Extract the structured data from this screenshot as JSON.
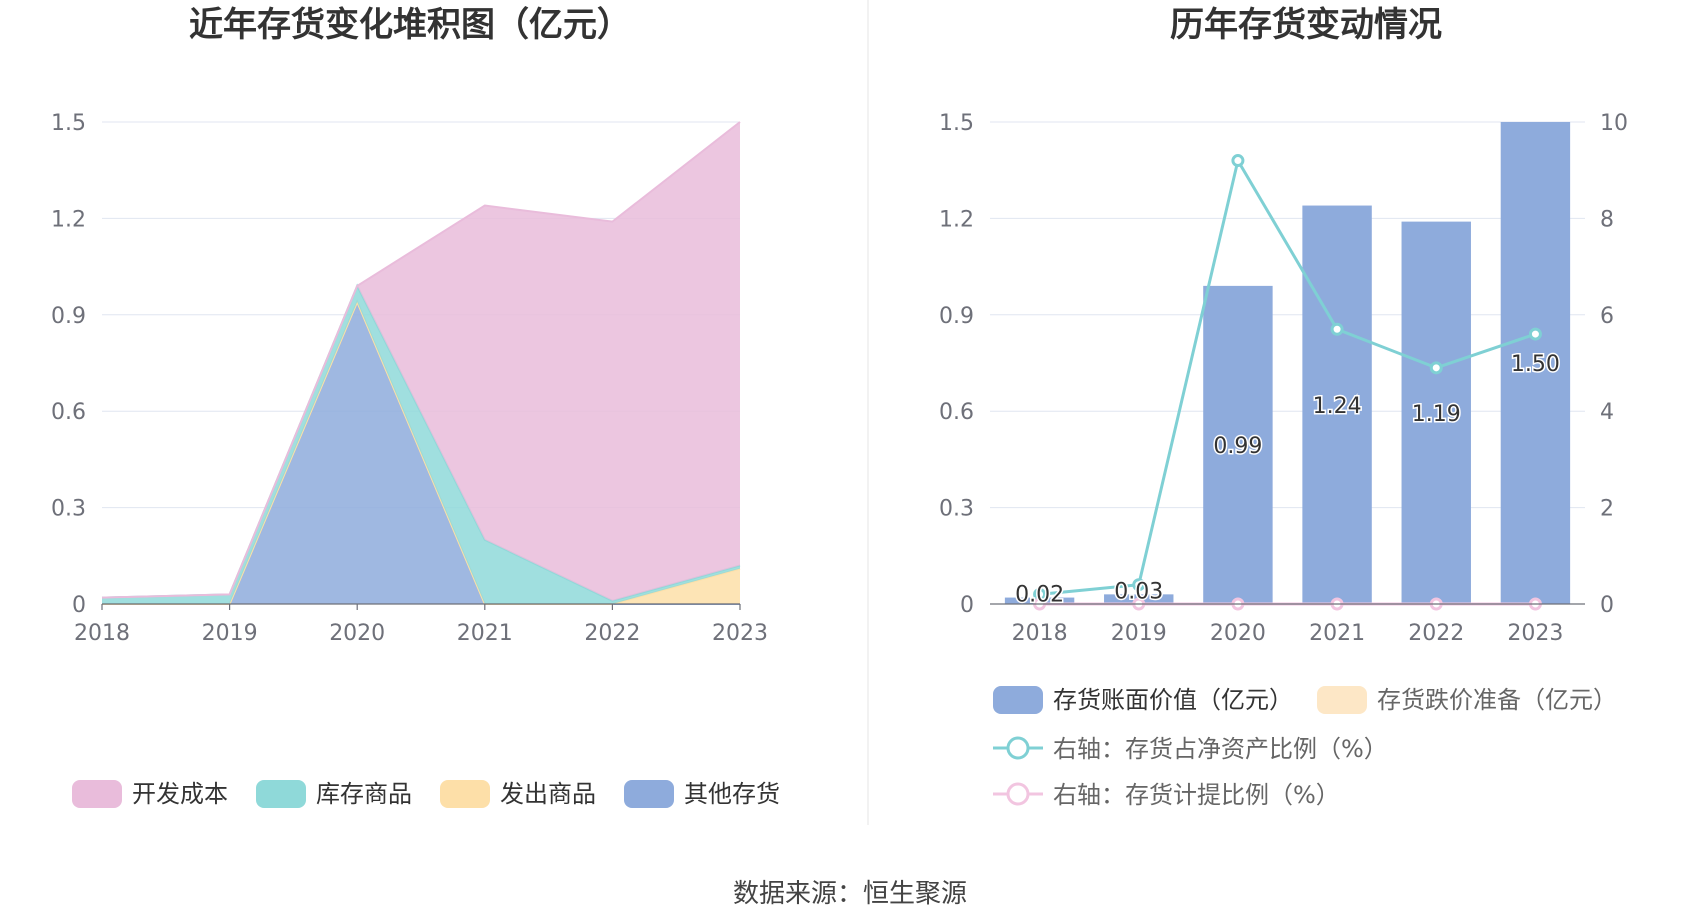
{
  "source_label": "数据来源：恒生聚源",
  "chart_data": [
    {
      "type": "area",
      "stacked": true,
      "title": "近年存货变化堆积图（亿元）",
      "categories": [
        "2018",
        "2019",
        "2020",
        "2021",
        "2022",
        "2023"
      ],
      "ylim": [
        0,
        1.5
      ],
      "yticks": [
        "0",
        "0.3",
        "0.6",
        "0.9",
        "1.2",
        "1.5"
      ],
      "grid": true,
      "legend_position": "bottom",
      "series": [
        {
          "name": "其他存货",
          "color": "#8eabdc",
          "values": [
            0,
            0,
            0.94,
            0,
            0,
            0
          ]
        },
        {
          "name": "发出商品",
          "color": "#fddfa8",
          "values": [
            0,
            0,
            0,
            0,
            0,
            0.11
          ]
        },
        {
          "name": "库存商品",
          "color": "#8fd9d9",
          "values": [
            0.02,
            0.03,
            0.05,
            0.2,
            0.01,
            0.01
          ]
        },
        {
          "name": "开发成本",
          "color": "#e9bcdb",
          "values": [
            0,
            0,
            0,
            1.04,
            1.18,
            1.38
          ]
        }
      ],
      "legend": [
        {
          "name": "开发成本",
          "color": "#e9bcdb"
        },
        {
          "name": "库存商品",
          "color": "#8fd9d9"
        },
        {
          "name": "发出商品",
          "color": "#fddfa8"
        },
        {
          "name": "其他存货",
          "color": "#8eabdc"
        }
      ]
    },
    {
      "type": "bar",
      "title": "历年存货变动情况",
      "categories": [
        "2018",
        "2019",
        "2020",
        "2021",
        "2022",
        "2023"
      ],
      "ylim": [
        0,
        1.5
      ],
      "yticks": [
        "0",
        "0.3",
        "0.6",
        "0.9",
        "1.2",
        "1.5"
      ],
      "y2lim": [
        0,
        10
      ],
      "y2ticks": [
        "0",
        "2",
        "4",
        "6",
        "8",
        "10"
      ],
      "grid": true,
      "legend_position": "bottom",
      "bars": {
        "name": "存货账面价值（亿元）",
        "color": "#8eabdc",
        "values": [
          0.02,
          0.03,
          0.99,
          1.24,
          1.19,
          1.5
        ],
        "labels": [
          "0.02",
          "0.03",
          "0.99",
          "1.24",
          "1.19",
          "1.50"
        ]
      },
      "bars2": {
        "name": "存货跌价准备（亿元）",
        "color": "#fde7c6",
        "values": [
          0,
          0,
          0,
          0,
          0,
          0
        ]
      },
      "lines": [
        {
          "name": "右轴：存货占净资产比例（%）",
          "color": "#7fd0d4",
          "values": [
            0.2,
            0.4,
            9.2,
            5.7,
            4.9,
            5.6
          ]
        },
        {
          "name": "右轴：存货计提比例（%）",
          "color": "#f2c5e0",
          "values": [
            0,
            0,
            0,
            0,
            0,
            0
          ]
        }
      ]
    }
  ]
}
